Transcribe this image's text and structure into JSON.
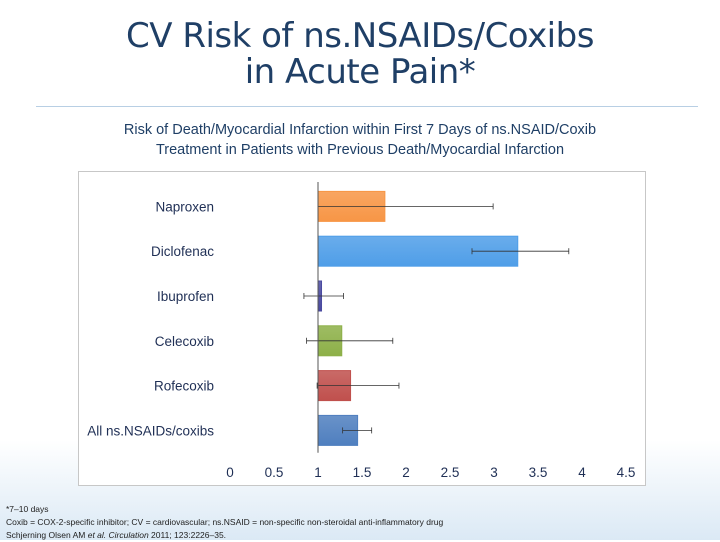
{
  "slide": {
    "title_line1": "CV Risk of ns.NSAIDs/Coxibs",
    "title_line2": "in Acute Pain*",
    "subtitle_line1": "Risk of Death/Myocardial Infarction within First 7 Days of ns.NSAID/Coxib",
    "subtitle_line2": "Treatment in Patients with Previous Death/Myocardial Infarction"
  },
  "chart_data": {
    "type": "bar",
    "orientation": "horizontal",
    "categories": [
      "Naproxen",
      "Diclofenac",
      "Ibuprofen",
      "Celecoxib",
      "Rofecoxib",
      "All ns.NSAIDs/coxibs"
    ],
    "values": [
      1.76,
      3.27,
      1.04,
      1.27,
      1.37,
      1.45
    ],
    "ci_low": [
      1.0,
      2.75,
      0.84,
      0.87,
      0.99,
      1.28
    ],
    "ci_high": [
      2.99,
      3.85,
      1.29,
      1.85,
      1.92,
      1.61
    ],
    "colors": [
      "#f79646",
      "#4f9ee8",
      "#4a4aa0",
      "#8db048",
      "#c0504d",
      "#4f7fbf"
    ],
    "x_ticks": [
      "0",
      "0.5",
      "1",
      "1.5",
      "2",
      "2.5",
      "3",
      "3.5",
      "4",
      "4.5"
    ],
    "xlim": [
      0,
      4.5
    ],
    "baseline": 1
  },
  "footnotes": {
    "line1": "*7–10 days",
    "line2": "Coxib = COX-2-specific inhibitor; CV = cardiovascular; ns.NSAID = non-specific non-steroidal anti-inflammatory drug",
    "line3_author": "Schjerning Olsen AM ",
    "line3_etal": "et al. Circulation",
    "line3_ref": " 2011; 123:2226–35."
  }
}
